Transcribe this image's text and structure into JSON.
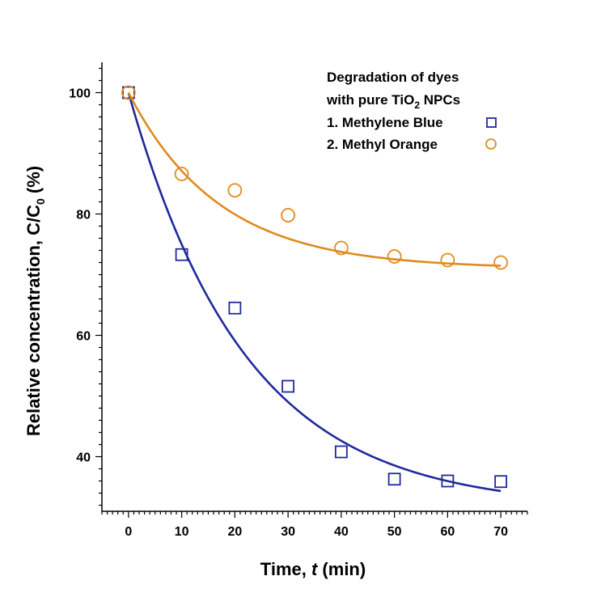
{
  "chart_data": {
    "type": "scatter",
    "xlabel_main": "Time, ",
    "xlabel_var": "t",
    "xlabel_unit": " (min)",
    "ylabel_main": "Relative concentration, C/C",
    "ylabel_sub": "0",
    "ylabel_unit": " (%)",
    "xlim": [
      -5,
      75
    ],
    "ylim": [
      31,
      105
    ],
    "xticks": [
      0,
      10,
      20,
      30,
      40,
      50,
      60,
      70
    ],
    "yticks": [
      40,
      60,
      80,
      100
    ],
    "legend": {
      "title_line1": "Degradation of dyes",
      "title_line2_pre": "with pure TiO",
      "title_line2_sub": "2",
      "title_line2_post": " NPCs",
      "placement": "top-right"
    },
    "series": [
      {
        "name": "1. Methylene Blue",
        "marker": "square",
        "color": "#1f2a9c",
        "x": [
          0,
          10,
          20,
          30,
          40,
          50,
          60,
          70
        ],
        "y": [
          100,
          73.3,
          64.5,
          51.6,
          40.8,
          36.3,
          36.0,
          35.9
        ],
        "fit": {
          "y0": 31.5,
          "A": 68.5,
          "tau": 22.0
        }
      },
      {
        "name": "2. Methyl Orange",
        "marker": "circle",
        "color": "#e08a1e",
        "x": [
          0,
          10,
          20,
          30,
          40,
          50,
          60,
          70
        ],
        "y": [
          100,
          86.6,
          83.9,
          79.8,
          74.4,
          73.0,
          72.4,
          72.0
        ],
        "fit": {
          "y0": 71.0,
          "A": 29.0,
          "tau": 17.0
        }
      }
    ]
  }
}
